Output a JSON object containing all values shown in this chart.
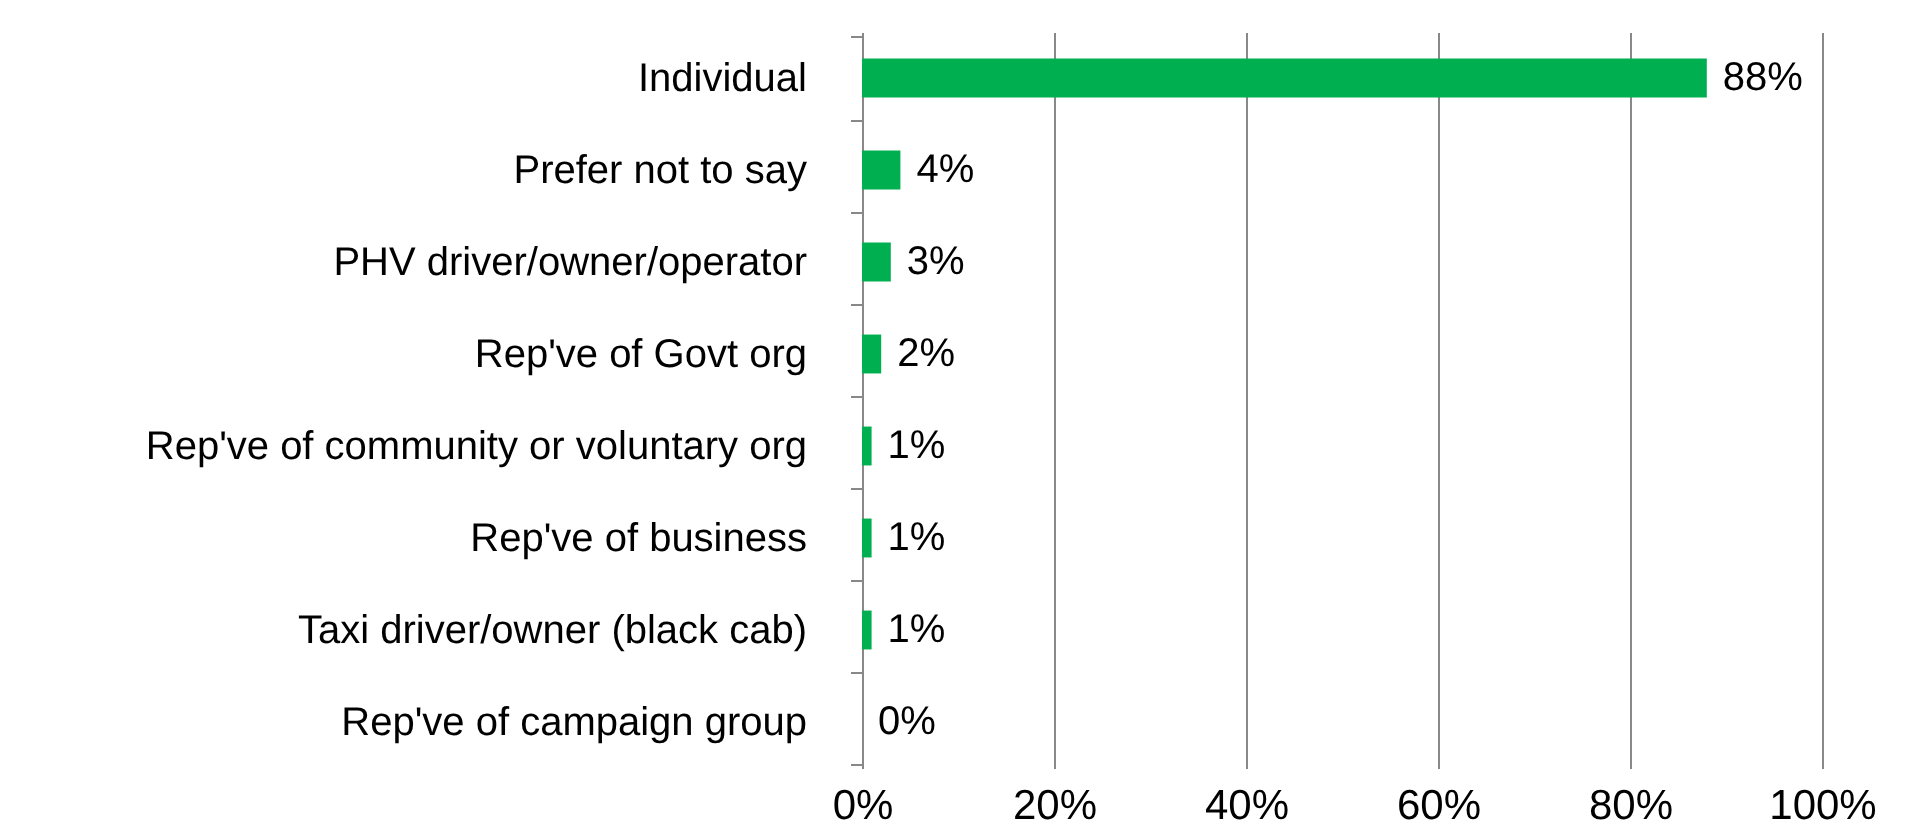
{
  "chart_data": {
    "type": "bar",
    "orientation": "horizontal",
    "categories": [
      "Individual",
      "Prefer not to say",
      "PHV driver/owner/operator",
      "Rep've of Govt org",
      "Rep've of community or voluntary org",
      "Rep've of business",
      "Taxi driver/owner (black cab)",
      "Rep've of campaign group"
    ],
    "values": [
      88,
      4,
      3,
      2,
      1,
      1,
      1,
      0
    ],
    "value_labels": [
      "88%",
      "4%",
      "3%",
      "2%",
      "1%",
      "1%",
      "1%",
      "0%"
    ],
    "color": "#00b050",
    "xlim": [
      0,
      100
    ],
    "xticks": [
      {
        "value": 0,
        "label": "0%"
      },
      {
        "value": 20,
        "label": "20%"
      },
      {
        "value": 40,
        "label": "40%"
      },
      {
        "value": 60,
        "label": "60%"
      },
      {
        "value": 80,
        "label": "80%"
      },
      {
        "value": 100,
        "label": "100%"
      }
    ],
    "grid": "x"
  }
}
